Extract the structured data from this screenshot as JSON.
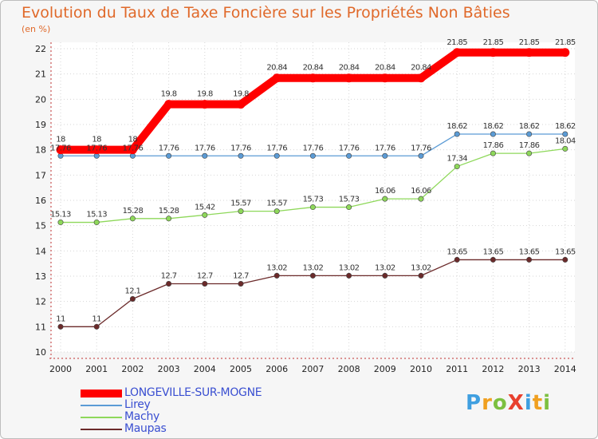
{
  "title": "Evolution du Taux de Taxe Foncière sur les Propriétés Non Bâties",
  "unit_label": "(en %)",
  "logo": {
    "text": "ProXiti"
  },
  "chart_data": {
    "type": "line",
    "x": [
      "2000",
      "2001",
      "2002",
      "2003",
      "2004",
      "2005",
      "2006",
      "2007",
      "2008",
      "2009",
      "2010",
      "2011",
      "2012",
      "2013",
      "2014"
    ],
    "ylim": [
      10,
      22
    ],
    "yticks": [
      10,
      11,
      12,
      13,
      14,
      15,
      16,
      17,
      18,
      19,
      20,
      21,
      22
    ],
    "grid": true,
    "legend_position": "bottom-left",
    "series": [
      {
        "name": "LONGEVILLE-SUR-MOGNE",
        "color": "#ff0000",
        "values": [
          18,
          18,
          18,
          19.8,
          19.8,
          19.8,
          20.84,
          20.84,
          20.84,
          20.84,
          20.84,
          21.85,
          21.85,
          21.85,
          21.85
        ],
        "labels": [
          "18",
          "18",
          "18",
          "19.8",
          "19.8",
          "19.8",
          "20.84",
          "20.84",
          "20.84",
          "20.84",
          "20.84",
          "21.85",
          "21.85",
          "21.85",
          "21.85"
        ]
      },
      {
        "name": "Lirey",
        "color": "#5b9bd5",
        "values": [
          17.76,
          17.76,
          17.76,
          17.76,
          17.76,
          17.76,
          17.76,
          17.76,
          17.76,
          17.76,
          17.76,
          18.62,
          18.62,
          18.62,
          18.62
        ],
        "labels": [
          "17.76",
          "17.76",
          "17.76",
          "17.76",
          "17.76",
          "17.76",
          "17.76",
          "17.76",
          "17.76",
          "17.76",
          "17.76",
          "18.62",
          "18.62",
          "18.62",
          "18.62"
        ]
      },
      {
        "name": "Machy",
        "color": "#8ed85a",
        "values": [
          15.13,
          15.13,
          15.28,
          15.28,
          15.42,
          15.57,
          15.57,
          15.73,
          15.73,
          16.06,
          16.06,
          17.34,
          17.86,
          17.86,
          18.04
        ],
        "labels": [
          "15.13",
          "15.13",
          "15.28",
          "15.28",
          "15.42",
          "15.57",
          "15.57",
          "15.73",
          "15.73",
          "16.06",
          "16.06",
          "17.34",
          "17.86",
          "17.86",
          "18.04"
        ]
      },
      {
        "name": "Maupas",
        "color": "#6b2a2a",
        "values": [
          11,
          11,
          12.1,
          12.7,
          12.7,
          12.7,
          13.02,
          13.02,
          13.02,
          13.02,
          13.02,
          13.65,
          13.65,
          13.65,
          13.65
        ],
        "labels": [
          "11",
          "11",
          "12.1",
          "12.7",
          "12.7",
          "12.7",
          "13.02",
          "13.02",
          "13.02",
          "13.02",
          "13.02",
          "13.65",
          "13.65",
          "13.65",
          "13.65"
        ]
      }
    ]
  }
}
